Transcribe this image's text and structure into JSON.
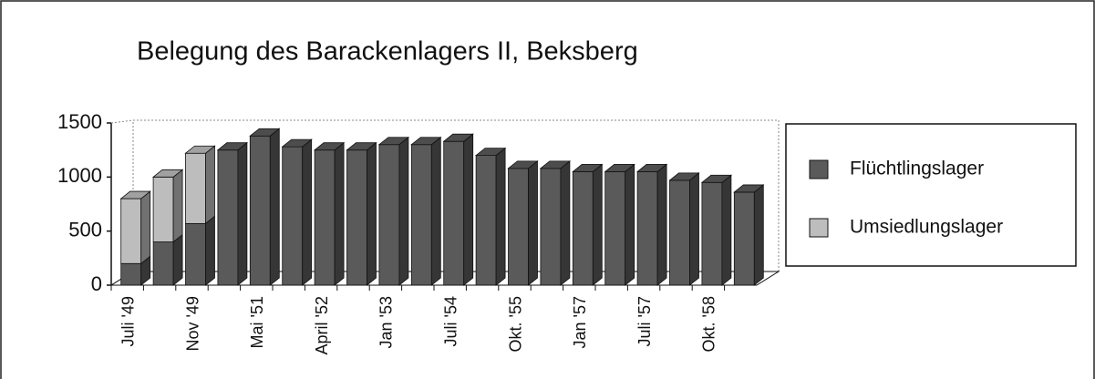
{
  "chart_data": {
    "type": "bar",
    "stacked": true,
    "title": "Belegung des Barackenlagers II, Beksberg",
    "categories": [
      "Juli '49",
      null,
      "Nov '49",
      null,
      "Mai '51",
      null,
      "April '52",
      null,
      "Jan '53",
      null,
      "Juli '54",
      null,
      "Okt. '55",
      null,
      "Jan '57",
      null,
      "Juli '57",
      null,
      "Okt. '58",
      null
    ],
    "series": [
      {
        "name": "Flüchtlingslager",
        "color": "#5a5a5a",
        "values": [
          200,
          400,
          570,
          1250,
          1380,
          1280,
          1250,
          1250,
          1300,
          1300,
          1330,
          1200,
          1080,
          1080,
          1050,
          1050,
          1050,
          970,
          950,
          860
        ]
      },
      {
        "name": "Umsiedlungslager",
        "color": "#bdbdbd",
        "values": [
          600,
          600,
          650,
          0,
          0,
          0,
          0,
          0,
          0,
          0,
          0,
          0,
          0,
          0,
          0,
          0,
          0,
          0,
          0,
          0
        ]
      }
    ],
    "ylim": [
      0,
      1500
    ],
    "yticks": [
      0,
      500,
      1000,
      1500
    ],
    "legend": "right"
  }
}
